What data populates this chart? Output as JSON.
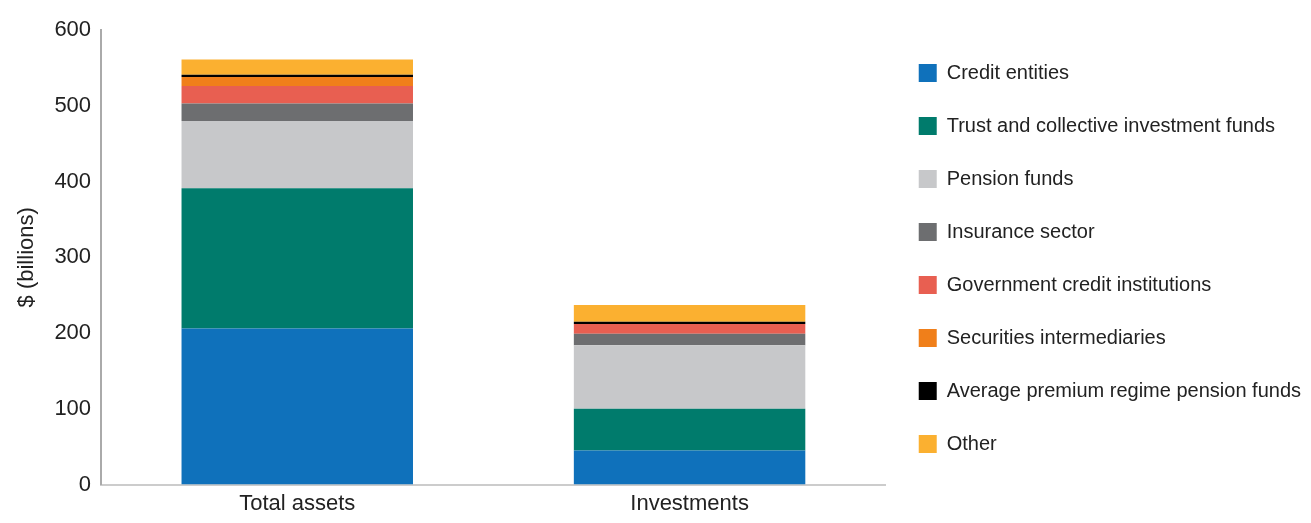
{
  "chart_data": {
    "type": "bar",
    "stacked": true,
    "ylabel": "$ (billions)",
    "categories": [
      "Total assets",
      "Investments"
    ],
    "series": [
      {
        "name": "Credit entities",
        "color": "#0f71bb",
        "values": [
          206,
          45
        ]
      },
      {
        "name": "Trust and collective investment funds",
        "color": "#007b6c",
        "values": [
          185,
          55
        ]
      },
      {
        "name": "Pension funds",
        "color": "#c7c8ca",
        "values": [
          89,
          84
        ]
      },
      {
        "name": "Insurance sector",
        "color": "#6d6e70",
        "values": [
          23,
          15
        ]
      },
      {
        "name": "Government credit institutions",
        "color": "#e85f51",
        "values": [
          23,
          13
        ]
      },
      {
        "name": "Securities intermediaries",
        "color": "#f07f1a",
        "values": [
          12,
          0
        ]
      },
      {
        "name": "Average premium regime pension funds",
        "color": "#000000",
        "values": [
          3,
          3
        ]
      },
      {
        "name": "Other",
        "color": "#fbb030",
        "values": [
          20,
          22
        ]
      }
    ],
    "ylim": [
      0,
      600
    ],
    "yticks": [
      0,
      100,
      200,
      300,
      400,
      500,
      600
    ],
    "grid": false,
    "legend": "right"
  }
}
